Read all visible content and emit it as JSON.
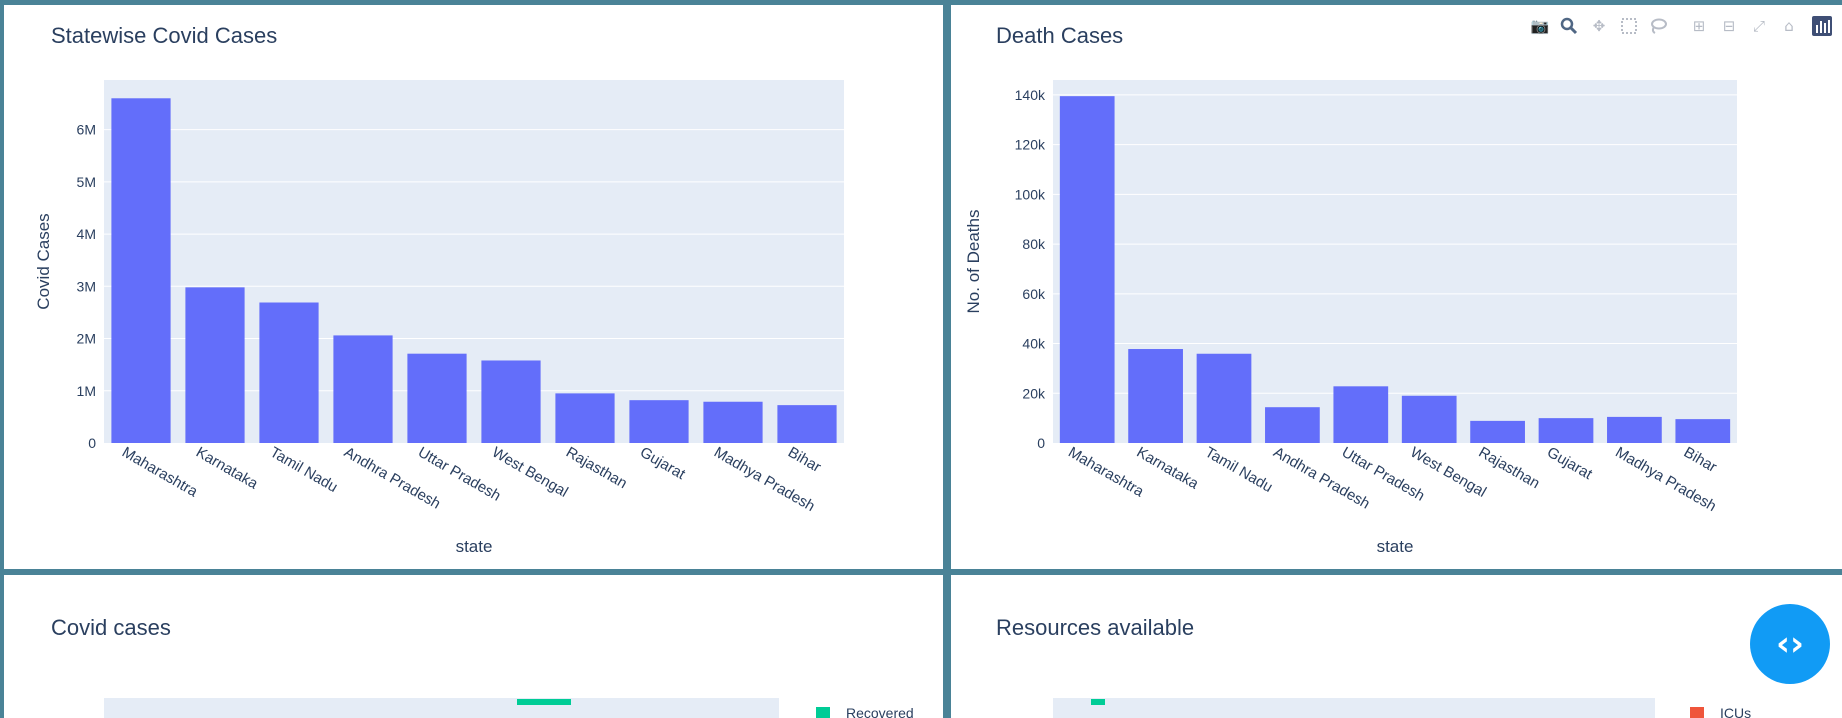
{
  "panels": {
    "cases": {
      "title": "Statewise Covid Cases"
    },
    "deaths": {
      "title": "Death Cases"
    },
    "covid": {
      "title": "Covid cases",
      "legend": "Recovered"
    },
    "resources": {
      "title": "Resources available",
      "legend": "ICUs"
    }
  },
  "modebar": {
    "icons": [
      "camera-icon",
      "zoom-icon",
      "pan-icon",
      "box-select-icon",
      "lasso-select-icon",
      "zoom-in-icon",
      "zoom-out-icon",
      "autoscale-icon",
      "reset-axes-icon",
      "plotly-logo-icon"
    ]
  },
  "colors": {
    "bar": "#636efa",
    "plot_bg": "#e5ecf6",
    "legend_recovered": "#00cc96",
    "legend_icus": "#ef553b",
    "fab": "#119bf5",
    "border": "#4a8397"
  },
  "fab_icon": "code-icon",
  "chart_data": [
    {
      "type": "bar",
      "title": "Statewise Covid Cases",
      "xlabel": "state",
      "ylabel": "Covid Cases",
      "categories": [
        "Maharashtra",
        "Karnataka",
        "Tamil Nadu",
        "Andhra Pradesh",
        "Uttar Pradesh",
        "West Bengal",
        "Rajasthan",
        "Gujarat",
        "Madhya Pradesh",
        "Bihar"
      ],
      "values": [
        6600000,
        2980000,
        2690000,
        2060000,
        1710000,
        1580000,
        950000,
        820000,
        790000,
        725000
      ],
      "ylim": [
        0,
        6950000
      ],
      "yticks": [
        0,
        1000000,
        2000000,
        3000000,
        4000000,
        5000000,
        6000000
      ],
      "ytick_labels": [
        "0",
        "1M",
        "2M",
        "3M",
        "4M",
        "5M",
        "6M"
      ],
      "grid": true
    },
    {
      "type": "bar",
      "title": "Death Cases",
      "xlabel": "state",
      "ylabel": "No. of Deaths",
      "categories": [
        "Maharashtra",
        "Karnataka",
        "Tamil Nadu",
        "Andhra Pradesh",
        "Uttar Pradesh",
        "West Bengal",
        "Rajasthan",
        "Gujarat",
        "Madhya Pradesh",
        "Bihar"
      ],
      "values": [
        139500,
        37800,
        35900,
        14400,
        22800,
        19000,
        8900,
        10000,
        10500,
        9600
      ],
      "ylim": [
        0,
        146000
      ],
      "yticks": [
        0,
        20000,
        40000,
        60000,
        80000,
        100000,
        120000,
        140000
      ],
      "ytick_labels": [
        "0",
        "20k",
        "40k",
        "60k",
        "80k",
        "100k",
        "120k",
        "140k"
      ],
      "grid": true
    }
  ]
}
